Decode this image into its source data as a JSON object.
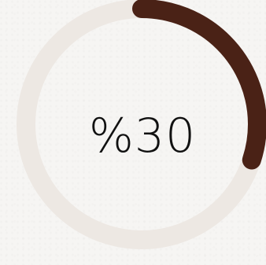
{
  "progress": {
    "label": "%30",
    "value_percent": 30
  },
  "colors": {
    "track": "#ede8e3",
    "fill": "#4a2216",
    "text": "#111111",
    "background": "#f6f5f3"
  }
}
